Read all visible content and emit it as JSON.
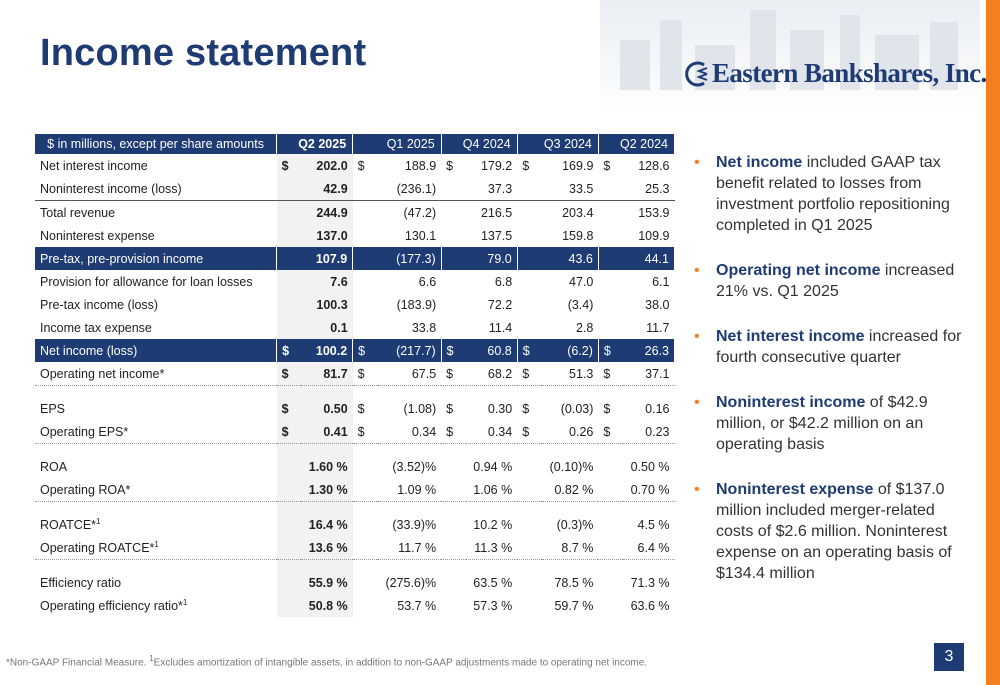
{
  "title": "Income statement",
  "logo": {
    "text": "Eastern Bankshares, Inc."
  },
  "colors": {
    "navy": "#1f3b73",
    "orange": "#f47f20"
  },
  "table": {
    "header": [
      "$ in millions, except per share amounts",
      "Q2 2025",
      "Q1 2025",
      "Q4 2024",
      "Q3 2024",
      "Q2 2024"
    ]
  },
  "rows": [
    {
      "label": "Net interest income",
      "values": [
        "202.0",
        "188.9",
        "179.2",
        "169.9",
        "128.6"
      ],
      "cur": [
        "$",
        "$",
        "$",
        "$",
        "$"
      ]
    },
    {
      "label": "Noninterest income (loss)",
      "values": [
        "42.9",
        "(236.1)",
        "37.3",
        "33.5",
        "25.3"
      ]
    },
    {
      "label": "Total revenue",
      "values": [
        "244.9",
        "(47.2)",
        "216.5",
        "203.4",
        "153.9"
      ]
    },
    {
      "label": "Noninterest expense",
      "values": [
        "137.0",
        "130.1",
        "137.5",
        "159.8",
        "109.9"
      ]
    },
    {
      "label": "Pre-tax, pre-provision income",
      "values": [
        "107.9",
        "(177.3)",
        "79.0",
        "43.6",
        "44.1"
      ]
    },
    {
      "label": "Provision for allowance for loan losses",
      "values": [
        "7.6",
        "6.6",
        "6.8",
        "47.0",
        "6.1"
      ]
    },
    {
      "label": "Pre-tax income (loss)",
      "values": [
        "100.3",
        "(183.9)",
        "72.2",
        "(3.4)",
        "38.0"
      ]
    },
    {
      "label": "Income tax expense",
      "values": [
        "0.1",
        "33.8",
        "11.4",
        "2.8",
        "11.7"
      ]
    },
    {
      "label": "Net income (loss)",
      "values": [
        "100.2",
        "(217.7)",
        "60.8",
        "(6.2)",
        "26.3"
      ],
      "cur": [
        "$",
        "$",
        "$",
        "$",
        "$"
      ]
    },
    {
      "label": "Operating net income*",
      "values": [
        "81.7",
        "67.5",
        "68.2",
        "51.3",
        "37.1"
      ],
      "cur": [
        "$",
        "$",
        "$",
        "$",
        "$"
      ]
    },
    {
      "label": "EPS",
      "values": [
        "0.50",
        "(1.08)",
        "0.30",
        "(0.03)",
        "0.16"
      ],
      "cur": [
        "$",
        "$",
        "$",
        "$",
        "$"
      ]
    },
    {
      "label": "Operating EPS*",
      "values": [
        "0.41",
        "0.34",
        "0.34",
        "0.26",
        "0.23"
      ],
      "cur": [
        "$",
        "$",
        "$",
        "$",
        "$"
      ]
    },
    {
      "label": "ROA",
      "values": [
        "1.60 %",
        "(3.52)%",
        "0.94 %",
        "(0.10)%",
        "0.50 %"
      ]
    },
    {
      "label": "Operating ROA*",
      "values": [
        "1.30 %",
        "1.09 %",
        "1.06 %",
        "0.82 %",
        "0.70 %"
      ]
    },
    {
      "label": "ROATCE*",
      "sup": "1",
      "values": [
        "16.4 %",
        "(33.9)%",
        "10.2 %",
        "(0.3)%",
        "4.5 %"
      ]
    },
    {
      "label": "Operating ROATCE*",
      "sup": "1",
      "values": [
        "13.6 %",
        "11.7 %",
        "11.3 %",
        "8.7 %",
        "6.4 %"
      ]
    },
    {
      "label": "Efficiency ratio",
      "values": [
        "55.9 %",
        "(275.6)%",
        "63.5 %",
        "78.5 %",
        "71.3 %"
      ]
    },
    {
      "label": "Operating efficiency ratio*",
      "sup": "1",
      "values": [
        "50.8 %",
        "53.7 %",
        "57.3 %",
        "59.7 %",
        "63.6 %"
      ]
    }
  ],
  "bullets": [
    {
      "strong": "Net income",
      "text": " included GAAP tax benefit related to losses from investment portfolio repositioning completed in Q1 2025"
    },
    {
      "strong": "Operating net income",
      "text": " increased 21% vs. Q1 2025"
    },
    {
      "strong": "Net interest income",
      "text": " increased for fourth consecutive quarter"
    },
    {
      "strong": "Noninterest income",
      "text": " of $42.9 million, or $42.2 million on an operating basis"
    },
    {
      "strong": "Noninterest expense",
      "text": " of $137.0 million included merger-related costs of $2.6 million. Noninterest expense on an operating basis of $134.4 million"
    }
  ],
  "footnote": {
    "pre": "*Non-GAAP Financial Measure. ",
    "sup": "1",
    "post": "Excludes amortization of intangible assets, in addition to non-GAAP adjustments made to operating net income."
  },
  "page_number": "3"
}
